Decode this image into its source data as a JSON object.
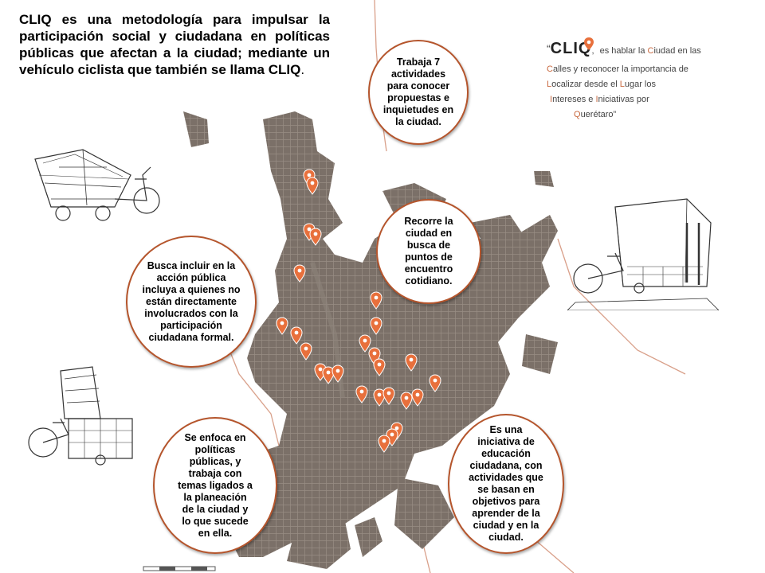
{
  "intro": {
    "bold_text": "CLIQ es una metodología para impulsar la participación social y ciudadana en políticas públicas que afectan a la ciudad; mediante un vehículo ciclista que también se llama CLIQ",
    "end": "."
  },
  "logo": {
    "open_quote": "“",
    "word": "CLIQ",
    "comma": ",",
    "lines": [
      {
        "accent": "",
        "text": "es hablar la ",
        "accent2": "C",
        "text2": "iudad en las"
      },
      {
        "accent": "C",
        "text": "alles y reconocer la importancia de",
        "accent2": "",
        "text2": ""
      },
      {
        "accent": "L",
        "text": "ocalizar desde el ",
        "accent2": "L",
        "text2": "ugar los"
      },
      {
        "accent": "I",
        "text": "ntereses e ",
        "accent2": "I",
        "text2": "niciativas por"
      },
      {
        "accent": "Q",
        "text": "uerétaro”",
        "accent2": "",
        "text2": ""
      }
    ]
  },
  "bubbles": {
    "b1": "Trabaja 7 actividades para conocer propuestas e inquietudes en la ciudad.",
    "b2": "Recorre la ciudad en busca de puntos de encuentro cotidiano.",
    "b3": "Busca incluir en la acción pública incluya a quienes no están directamente involucrados con la participación ciudadana formal.",
    "b4": "Se enfoca en políticas públicas, y trabaja con temas ligados a la planeación de la ciudad y lo que sucede en ella.",
    "b5": "Es una iniciativa de educación ciudadana, con actividades que se basan en objetivos para aprender de la ciudad y en la ciudad."
  },
  "colors": {
    "map_fill": "#7b7068",
    "pin": "#e8703c",
    "bubble_border": "#b5552c",
    "boundary": "#d9a08a"
  },
  "icons": {
    "pin": "map-pin-icon",
    "sketch": "cargo-bike-sketch"
  }
}
